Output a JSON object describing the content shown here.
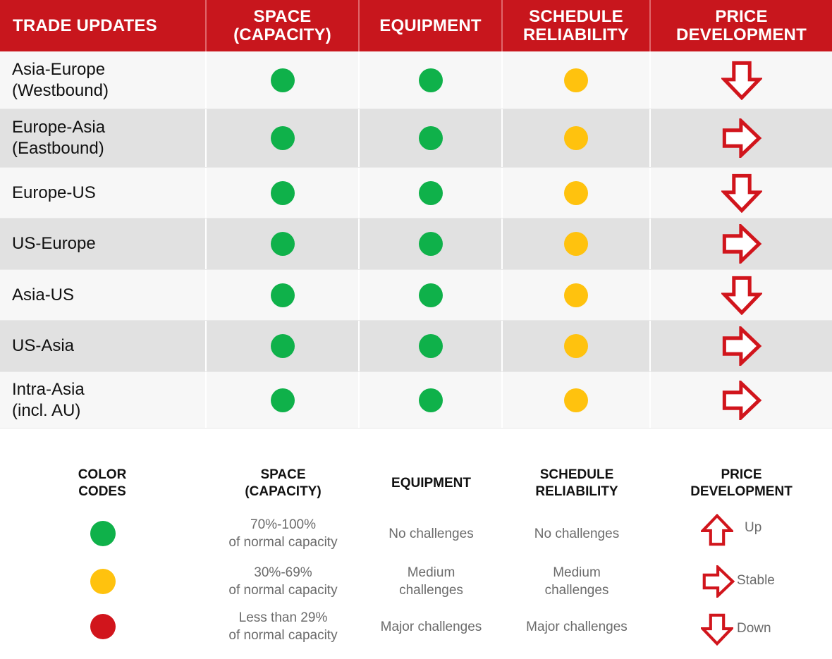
{
  "colors": {
    "header_bg": "#c8161d",
    "green": "#0fb14a",
    "amber": "#ffc20e",
    "red": "#d1151c",
    "arrow": "#d1151c"
  },
  "table": {
    "headers": [
      "Trade Updates",
      "Space\n(Capacity)",
      "Equipment",
      "Schedule\nReliability",
      "Price\nDevelopment"
    ],
    "rows": [
      {
        "trade": "Asia-Europe\n(Westbound)",
        "space": "green",
        "equipment": "green",
        "schedule": "amber",
        "price": "down"
      },
      {
        "trade": "Europe-Asia\n(Eastbound)",
        "space": "green",
        "equipment": "green",
        "schedule": "amber",
        "price": "stable"
      },
      {
        "trade": "Europe-US",
        "space": "green",
        "equipment": "green",
        "schedule": "amber",
        "price": "down"
      },
      {
        "trade": "US-Europe",
        "space": "green",
        "equipment": "green",
        "schedule": "amber",
        "price": "stable"
      },
      {
        "trade": "Asia-US",
        "space": "green",
        "equipment": "green",
        "schedule": "amber",
        "price": "down"
      },
      {
        "trade": "US-Asia",
        "space": "green",
        "equipment": "green",
        "schedule": "amber",
        "price": "stable"
      },
      {
        "trade": "Intra-Asia\n(incl. AU)",
        "space": "green",
        "equipment": "green",
        "schedule": "amber",
        "price": "stable"
      }
    ]
  },
  "legend": {
    "headers": {
      "color_codes": "Color\ncodes",
      "space": "Space\n(Capacity)",
      "equipment": "Equipment",
      "schedule": "Schedule\nreliability",
      "price": "Price\ndevelopment"
    },
    "levels": [
      {
        "color": "green",
        "space": "70%-100%\nof normal capacity",
        "equipment": "No challenges",
        "schedule": "No challenges"
      },
      {
        "color": "amber",
        "space": "30%-69%\nof normal capacity",
        "equipment": "Medium\nchallenges",
        "schedule": "Medium\nchallenges"
      },
      {
        "color": "red",
        "space": "Less than 29%\nof normal capacity",
        "equipment": "Major challenges",
        "schedule": "Major challenges"
      }
    ],
    "price": [
      {
        "direction": "up",
        "label": "Up"
      },
      {
        "direction": "stable",
        "label": "Stable"
      },
      {
        "direction": "down",
        "label": "Down"
      }
    ]
  }
}
